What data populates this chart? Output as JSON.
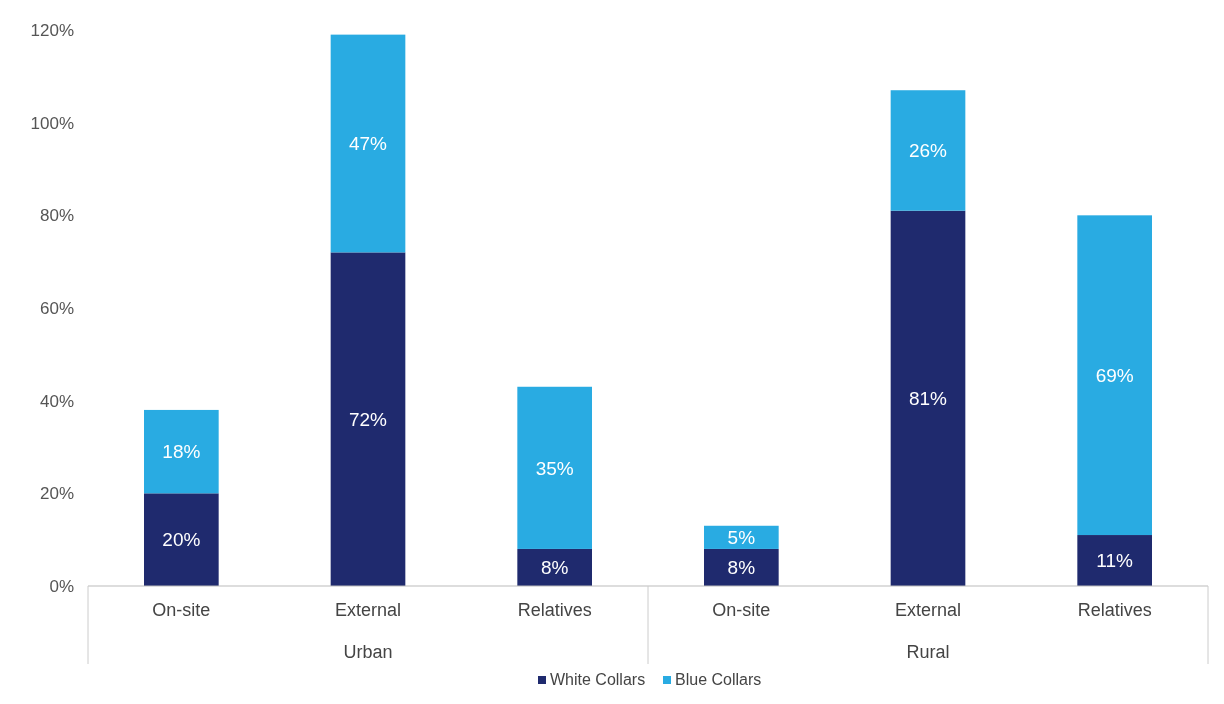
{
  "chart_data": {
    "type": "bar",
    "stacked": true,
    "categories": [
      "On-site",
      "External",
      "Relatives",
      "On-site",
      "External",
      "Relatives"
    ],
    "series": [
      {
        "name": "White Collars",
        "color": "#1f2a6e",
        "values": [
          20,
          72,
          8,
          8,
          81,
          11
        ],
        "value_labels": [
          "20%",
          "72%",
          "8%",
          "8%",
          "81%",
          "11%"
        ]
      },
      {
        "name": "Blue Collars",
        "color": "#29abe2",
        "values": [
          18,
          47,
          35,
          5,
          26,
          69
        ],
        "value_labels": [
          "18%",
          "47%",
          "35%",
          "5%",
          "26%",
          "69%"
        ]
      }
    ],
    "ylim": [
      0,
      120
    ],
    "yticks": [
      {
        "value": 0,
        "label": "0%"
      },
      {
        "value": 20,
        "label": "20%"
      },
      {
        "value": 40,
        "label": "40%"
      },
      {
        "value": 60,
        "label": "60%"
      },
      {
        "value": 80,
        "label": "80%"
      },
      {
        "value": 100,
        "label": "100%"
      },
      {
        "value": 120,
        "label": "120%"
      }
    ],
    "legend": "bottom",
    "grid": false,
    "annotations": [
      "Urban",
      "Rural"
    ]
  }
}
